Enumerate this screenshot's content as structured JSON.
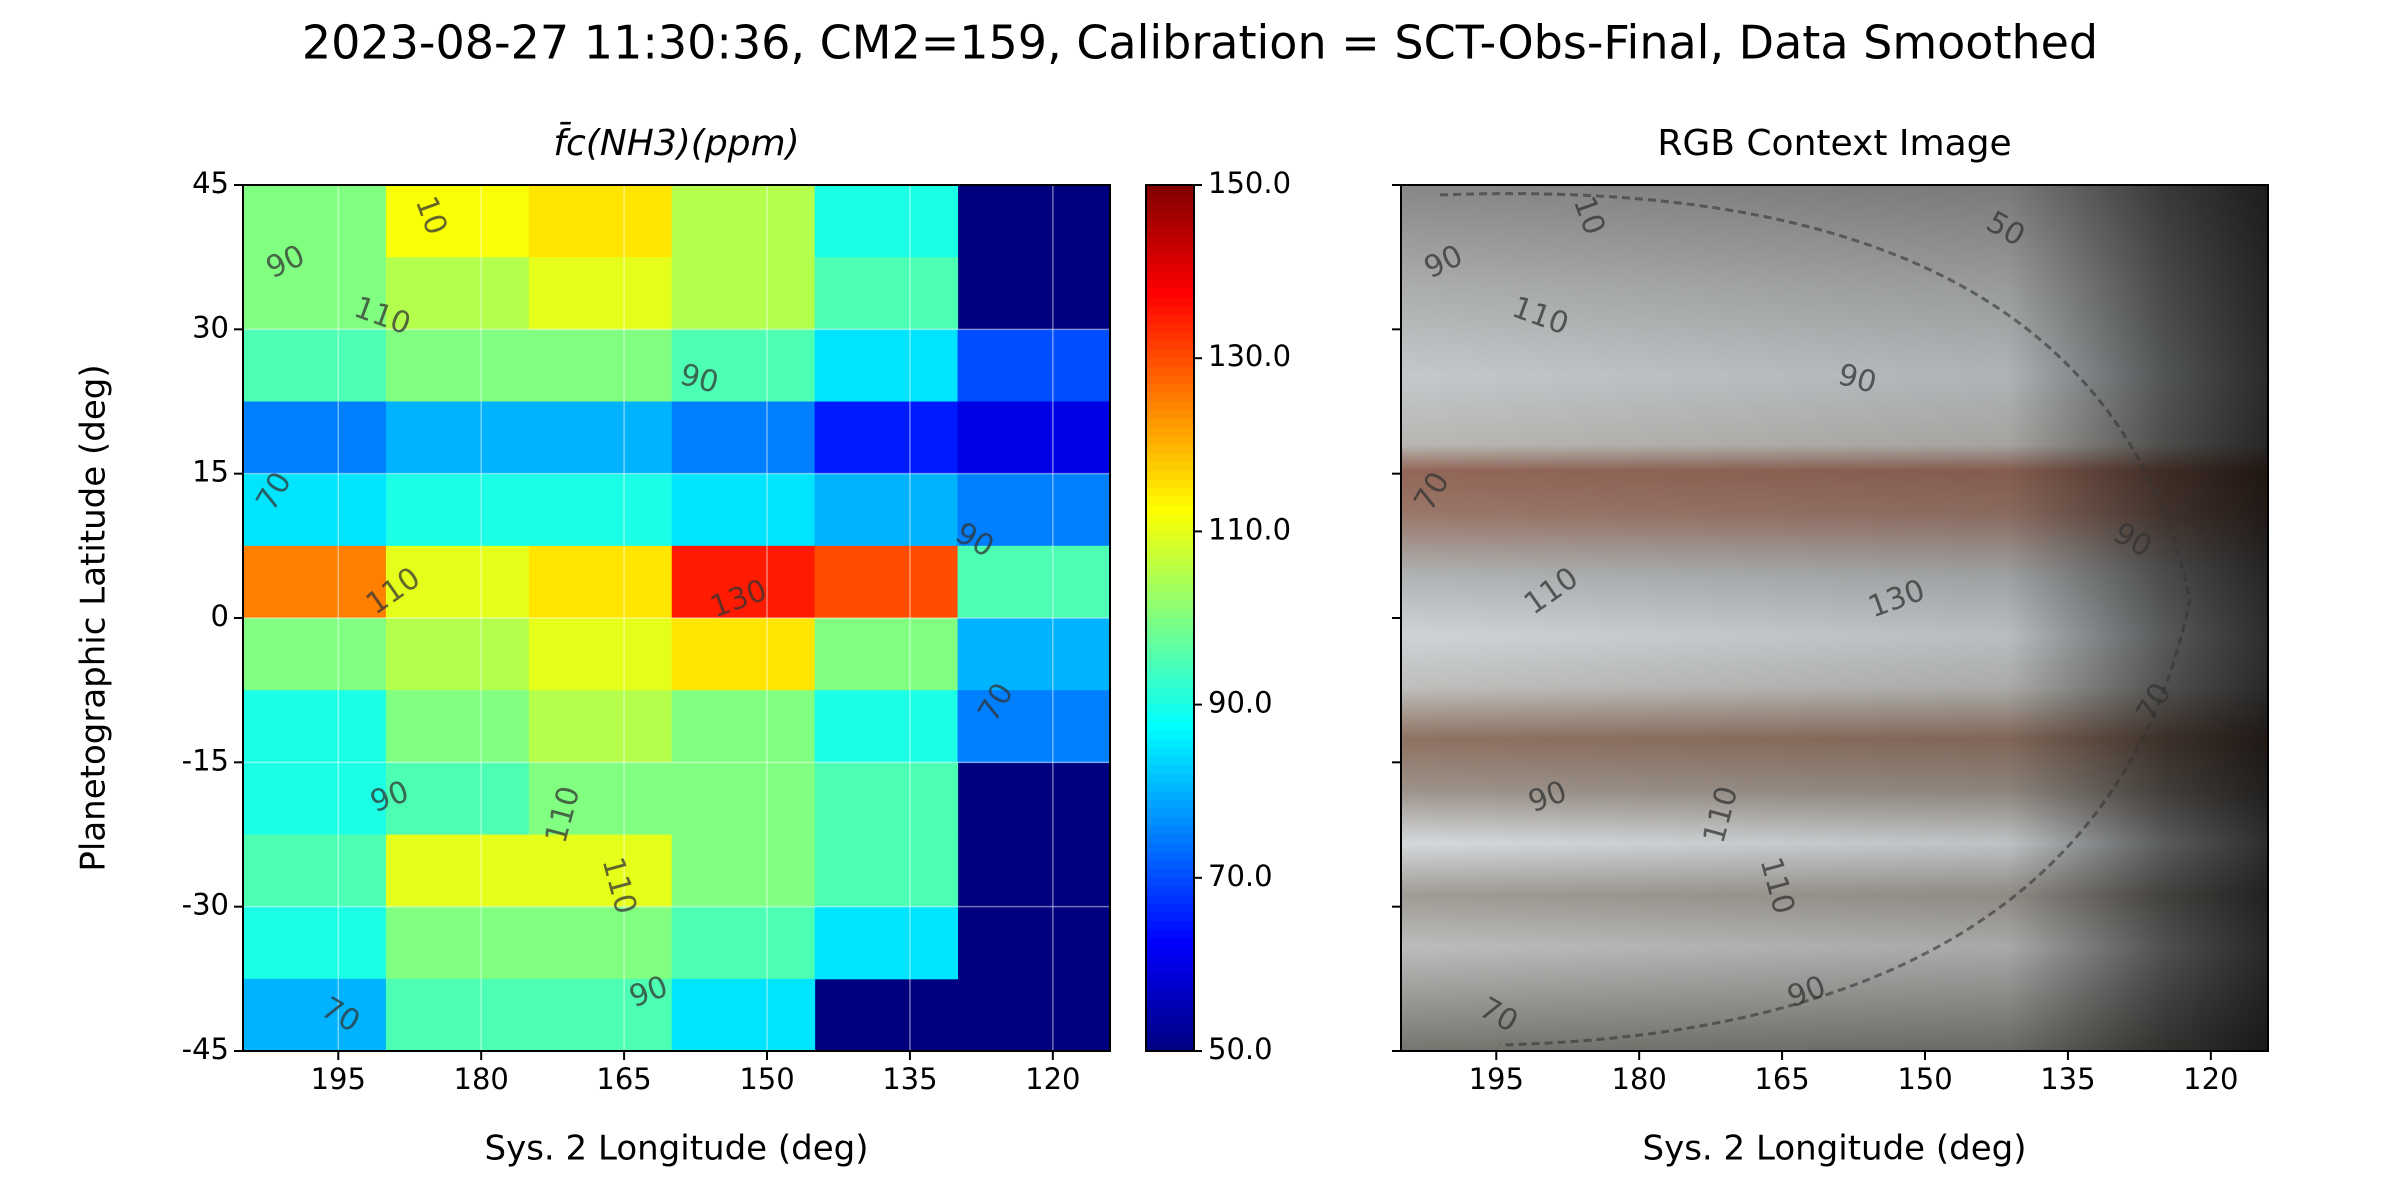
{
  "suptitle": "2023-08-27 11:30:36, CM2=159, Calibration = SCT-Obs-Final, Data Smoothed",
  "chart_data": [
    {
      "type": "heatmap",
      "title": "f̄c(NH3)(ppm)",
      "xlabel": "Sys. 2 Longitude (deg)",
      "ylabel": "Planetographic Latitude (deg)",
      "xlim": [
        205,
        114
      ],
      "xticks": [
        195,
        180,
        165,
        150,
        135,
        120
      ],
      "ylim": [
        -45,
        45
      ],
      "yticks": [
        45,
        30,
        15,
        0,
        -15,
        -30,
        -45
      ],
      "grid": true,
      "colormap": "jet",
      "clim": [
        50,
        150
      ],
      "cticks": [
        {
          "value": 150,
          "label": "150.0"
        },
        {
          "value": 130,
          "label": "130.0"
        },
        {
          "value": 110,
          "label": "110.0"
        },
        {
          "value": 90,
          "label": "90.0"
        },
        {
          "value": 70,
          "label": "70.0"
        },
        {
          "value": 50,
          "label": "50.0"
        }
      ],
      "x_edges": [
        205,
        190,
        175,
        160,
        145,
        130,
        114
      ],
      "y_edges": [
        45,
        37.5,
        30,
        22.5,
        15,
        7.5,
        0,
        -7.5,
        -15,
        -22.5,
        -30,
        -37.5,
        -45
      ],
      "z": [
        [
          100,
          112,
          115,
          105,
          90,
          null
        ],
        [
          100,
          105,
          110,
          105,
          95,
          null
        ],
        [
          95,
          100,
          100,
          95,
          85,
          70
        ],
        [
          75,
          80,
          80,
          75,
          65,
          60
        ],
        [
          85,
          90,
          90,
          85,
          80,
          75
        ],
        [
          125,
          110,
          115,
          135,
          130,
          95
        ],
        [
          100,
          105,
          110,
          115,
          100,
          80
        ],
        [
          90,
          100,
          105,
          100,
          90,
          75
        ],
        [
          90,
          95,
          100,
          100,
          95,
          null
        ],
        [
          95,
          110,
          110,
          100,
          95,
          null
        ],
        [
          90,
          100,
          100,
          95,
          85,
          null
        ],
        [
          80,
          95,
          95,
          85,
          null,
          null
        ]
      ],
      "contour_labels": [
        "90",
        "10",
        "110",
        "90",
        "70",
        "110",
        "130",
        "90",
        "70",
        "90",
        "110",
        "110",
        "90",
        "70"
      ]
    },
    {
      "type": "image",
      "title": "RGB Context Image",
      "xlabel": "Sys. 2 Longitude (deg)",
      "xlim": [
        205,
        114
      ],
      "xticks": [
        195,
        180,
        165,
        150,
        135,
        120
      ],
      "ylim": [
        -45,
        45
      ],
      "yticks": [
        45,
        30,
        15,
        0,
        -15,
        -30,
        -45
      ],
      "contour_labels": [
        "90",
        "10",
        "110",
        "50",
        "90",
        "70",
        "110",
        "130",
        "90",
        "70",
        "90",
        "110",
        "110",
        "90",
        "70"
      ]
    }
  ]
}
